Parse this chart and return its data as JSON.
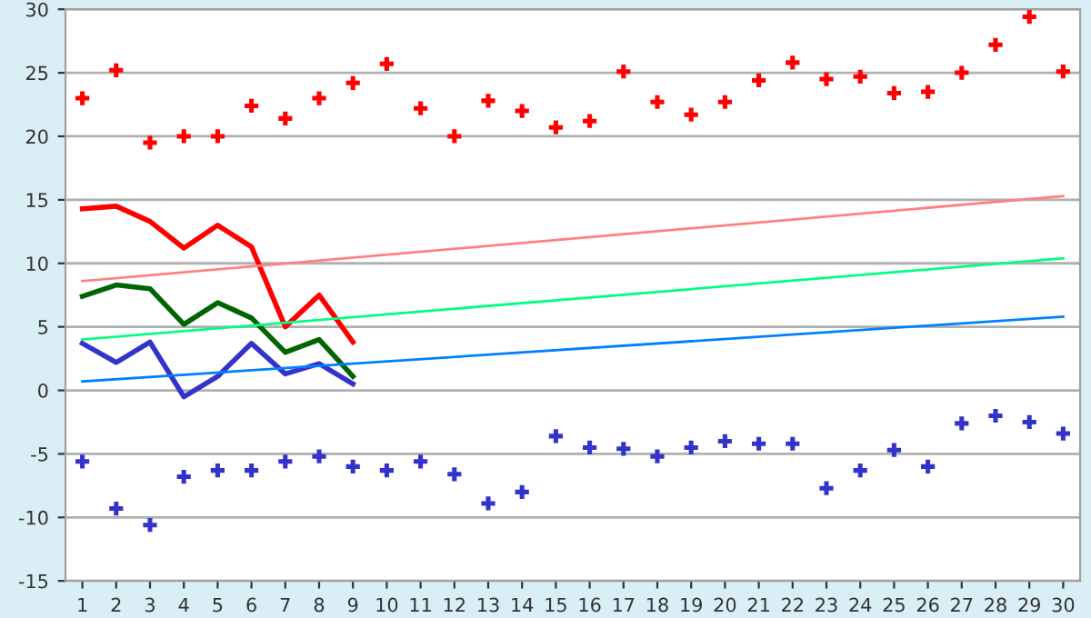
{
  "chart_data": {
    "type": "line",
    "categories": [
      "1",
      "2",
      "3",
      "4",
      "5",
      "6",
      "7",
      "8",
      "9",
      "10",
      "11",
      "12",
      "13",
      "14",
      "15",
      "16",
      "17",
      "18",
      "19",
      "20",
      "21",
      "22",
      "23",
      "24",
      "25",
      "26",
      "27",
      "28",
      "29",
      "30"
    ],
    "series": [
      {
        "type": "scatter",
        "marker": "cross",
        "color": "#ff0000",
        "values": [
          23.0,
          25.2,
          19.5,
          20.0,
          20.0,
          22.4,
          21.4,
          23.0,
          24.2,
          25.7,
          22.2,
          20.0,
          22.8,
          22.0,
          20.7,
          21.2,
          25.1,
          22.7,
          21.7,
          22.7,
          24.4,
          25.8,
          24.5,
          24.7,
          23.4,
          23.5,
          25.0,
          27.2,
          29.4,
          25.1
        ]
      },
      {
        "type": "scatter",
        "marker": "cross",
        "color": "#3333cc",
        "values": [
          -5.6,
          -9.3,
          -10.6,
          -6.8,
          -6.3,
          -6.3,
          -5.6,
          -5.2,
          -6.0,
          -6.3,
          -5.6,
          -6.6,
          -8.9,
          -8.0,
          -3.6,
          -4.5,
          -4.6,
          -5.2,
          -4.5,
          -4.0,
          -4.2,
          -4.2,
          -7.7,
          -6.3,
          -4.7,
          -6.0,
          -2.6,
          -2.0,
          -2.5,
          -3.4
        ]
      },
      {
        "color": "#ff0000",
        "values": [
          14.3,
          14.5,
          13.3,
          11.2,
          13.0,
          11.3,
          5.0,
          7.5,
          3.8,
          null,
          null,
          null,
          null,
          null,
          null,
          null,
          null,
          null,
          null,
          null,
          null,
          null,
          null,
          null,
          null,
          null,
          null,
          null,
          null,
          null
        ]
      },
      {
        "color": "#006400",
        "values": [
          7.4,
          8.3,
          8.0,
          5.2,
          6.9,
          5.7,
          3.0,
          4.0,
          1.1,
          null,
          null,
          null,
          null,
          null,
          null,
          null,
          null,
          null,
          null,
          null,
          null,
          null,
          null,
          null,
          null,
          null,
          null,
          null,
          null,
          null
        ]
      },
      {
        "color": "#3333cc",
        "values": [
          3.7,
          2.2,
          3.8,
          -0.5,
          1.1,
          3.7,
          1.3,
          2.1,
          0.5,
          null,
          null,
          null,
          null,
          null,
          null,
          null,
          null,
          null,
          null,
          null,
          null,
          null,
          null,
          null,
          null,
          null,
          null,
          null,
          null,
          null
        ]
      },
      {
        "color": "#ff8080",
        "x": [
          "1",
          "30"
        ],
        "values": [
          8.6,
          15.3
        ]
      },
      {
        "color": "#00ff80",
        "x": [
          "1",
          "30"
        ],
        "values": [
          4.0,
          10.4
        ]
      },
      {
        "color": "#0080ff",
        "x": [
          "1",
          "30"
        ],
        "values": [
          0.7,
          5.8
        ]
      }
    ],
    "ylim": [
      -15,
      30
    ],
    "yticks": [
      -15,
      -10,
      -5,
      0,
      5,
      10,
      15,
      20,
      25,
      30
    ],
    "grid": "y",
    "legend": false
  }
}
